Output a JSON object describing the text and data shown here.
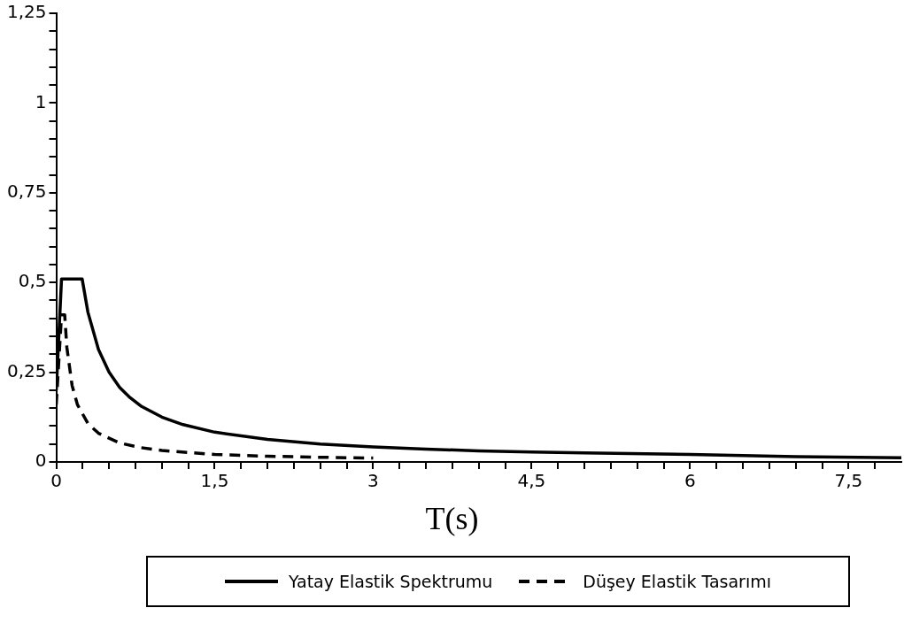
{
  "chart_data": {
    "type": "line",
    "xlabel": "T(s)",
    "xlim": [
      0,
      8
    ],
    "xticks": [
      0,
      {
        "value": 0.25,
        "label": null
      },
      {
        "value": 0.5,
        "label": null
      },
      {
        "value": 0.75,
        "label": null
      },
      {
        "value": 1,
        "label": null
      },
      {
        "value": 1.25,
        "label": null
      },
      {
        "value": 1.5,
        "label": "1,5"
      },
      {
        "value": 1.75,
        "label": null
      },
      {
        "value": 2,
        "label": null
      },
      {
        "value": 2.25,
        "label": null
      },
      {
        "value": 2.5,
        "label": null
      },
      {
        "value": 2.75,
        "label": null
      },
      3,
      {
        "value": 3.25,
        "label": null
      },
      {
        "value": 3.5,
        "label": null
      },
      {
        "value": 3.75,
        "label": null
      },
      {
        "value": 4,
        "label": null
      },
      {
        "value": 4.25,
        "label": null
      },
      {
        "value": 4.5,
        "label": "4,5"
      },
      {
        "value": 4.75,
        "label": null
      },
      {
        "value": 5,
        "label": null
      },
      {
        "value": 5.25,
        "label": null
      },
      {
        "value": 5.5,
        "label": null
      },
      {
        "value": 5.75,
        "label": null
      },
      6,
      {
        "value": 6.25,
        "label": null
      },
      {
        "value": 6.5,
        "label": null
      },
      {
        "value": 6.75,
        "label": null
      },
      {
        "value": 7,
        "label": null
      },
      {
        "value": 7.25,
        "label": null
      },
      {
        "value": 7.5,
        "label": "7,5"
      },
      {
        "value": 7.75,
        "label": null
      }
    ],
    "ylim": [
      0,
      1.25
    ],
    "yticks": [
      0,
      {
        "value": 0.05,
        "label": null
      },
      {
        "value": 0.1,
        "label": null
      },
      {
        "value": 0.15,
        "label": null
      },
      {
        "value": 0.2,
        "label": null
      },
      {
        "value": 0.25,
        "label": "0,25"
      },
      {
        "value": 0.3,
        "label": null
      },
      {
        "value": 0.35,
        "label": null
      },
      {
        "value": 0.4,
        "label": null
      },
      {
        "value": 0.45,
        "label": null
      },
      {
        "value": 0.5,
        "label": "0,5"
      },
      {
        "value": 0.55,
        "label": null
      },
      {
        "value": 0.6,
        "label": null
      },
      {
        "value": 0.65,
        "label": null
      },
      {
        "value": 0.7,
        "label": null
      },
      {
        "value": 0.75,
        "label": "0,75"
      },
      {
        "value": 0.8,
        "label": null
      },
      {
        "value": 0.85,
        "label": null
      },
      {
        "value": 0.9,
        "label": null
      },
      {
        "value": 0.95,
        "label": null
      },
      1,
      {
        "value": 1.05,
        "label": null
      },
      {
        "value": 1.1,
        "label": null
      },
      {
        "value": 1.15,
        "label": null
      },
      {
        "value": 1.2,
        "label": null
      },
      {
        "value": 1.25,
        "label": "1,25"
      }
    ],
    "grid": false,
    "legend": "bottom",
    "marker": "none",
    "series": [
      {
        "name": "Yatay Elastik Spektrumu",
        "color": "#000000",
        "line_style": "solid",
        "x": [
          0,
          0.05,
          0.245,
          0.3,
          0.4,
          0.5,
          0.6,
          0.7,
          0.8,
          1,
          1.2,
          1.5,
          2,
          2.5,
          3,
          3.5,
          4,
          4.5,
          5,
          6,
          7,
          8
        ],
        "values": [
          0.2,
          0.51,
          0.51,
          0.417,
          0.313,
          0.25,
          0.208,
          0.179,
          0.156,
          0.125,
          0.104,
          0.083,
          0.063,
          0.05,
          0.042,
          0.036,
          0.031,
          0.028,
          0.025,
          0.021,
          0.015,
          0.012
        ]
      },
      {
        "name": "Düşey Elastik Tasarımı",
        "color": "#000000",
        "line_style": "dashed",
        "x": [
          0,
          0.05,
          0.08,
          0.1,
          0.15,
          0.2,
          0.3,
          0.4,
          0.6,
          0.8,
          1,
          1.5,
          2,
          2.5,
          3
        ],
        "values": [
          0.16,
          0.41,
          0.41,
          0.32,
          0.213,
          0.16,
          0.107,
          0.08,
          0.053,
          0.04,
          0.032,
          0.021,
          0.016,
          0.013,
          0.011
        ]
      }
    ]
  }
}
